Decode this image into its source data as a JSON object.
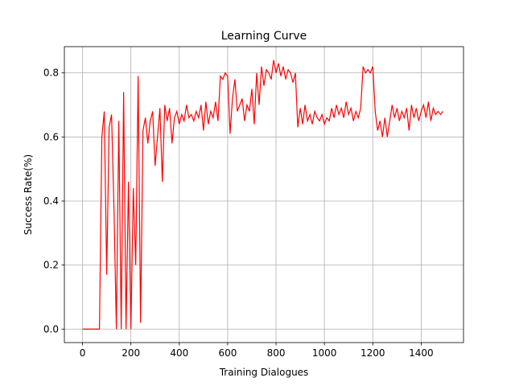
{
  "chart_data": {
    "type": "line",
    "title": "Learning Curve",
    "xlabel": "Training Dialogues",
    "ylabel": "Success Rate(%)",
    "x": [
      0,
      10,
      20,
      30,
      40,
      50,
      60,
      70,
      80,
      90,
      100,
      110,
      120,
      130,
      140,
      150,
      160,
      170,
      180,
      190,
      200,
      210,
      220,
      230,
      240,
      250,
      260,
      270,
      280,
      290,
      300,
      310,
      320,
      330,
      340,
      350,
      360,
      370,
      380,
      390,
      400,
      410,
      420,
      430,
      440,
      450,
      460,
      470,
      480,
      490,
      500,
      510,
      520,
      530,
      540,
      550,
      560,
      570,
      580,
      590,
      600,
      610,
      620,
      630,
      640,
      650,
      660,
      670,
      680,
      690,
      700,
      710,
      720,
      730,
      740,
      750,
      760,
      770,
      780,
      790,
      800,
      810,
      820,
      830,
      840,
      850,
      860,
      870,
      880,
      890,
      900,
      910,
      920,
      930,
      940,
      950,
      960,
      970,
      980,
      990,
      1000,
      1010,
      1020,
      1030,
      1040,
      1050,
      1060,
      1070,
      1080,
      1090,
      1100,
      1110,
      1120,
      1130,
      1140,
      1150,
      1160,
      1170,
      1180,
      1190,
      1200,
      1210,
      1220,
      1230,
      1240,
      1250,
      1260,
      1270,
      1280,
      1290,
      1300,
      1310,
      1320,
      1330,
      1340,
      1350,
      1360,
      1370,
      1380,
      1390,
      1400,
      1410,
      1420,
      1430,
      1440,
      1450,
      1460,
      1470,
      1480,
      1490
    ],
    "series": [
      {
        "name": "Success Rate",
        "color": "#ff0000",
        "values": [
          0,
          0,
          0,
          0,
          0,
          0,
          0,
          0,
          0.6,
          0.68,
          0.17,
          0.63,
          0.67,
          0.38,
          0,
          0.65,
          0,
          0.74,
          0,
          0.46,
          0,
          0.44,
          0.2,
          0.79,
          0.02,
          0.62,
          0.66,
          0.58,
          0.65,
          0.68,
          0.51,
          0.6,
          0.69,
          0.46,
          0.7,
          0.65,
          0.69,
          0.58,
          0.66,
          0.68,
          0.64,
          0.67,
          0.65,
          0.7,
          0.66,
          0.67,
          0.65,
          0.68,
          0.66,
          0.7,
          0.62,
          0.71,
          0.64,
          0.68,
          0.66,
          0.71,
          0.65,
          0.79,
          0.78,
          0.8,
          0.79,
          0.61,
          0.72,
          0.78,
          0.68,
          0.7,
          0.72,
          0.65,
          0.7,
          0.68,
          0.75,
          0.64,
          0.8,
          0.7,
          0.82,
          0.76,
          0.81,
          0.8,
          0.78,
          0.84,
          0.8,
          0.83,
          0.79,
          0.82,
          0.78,
          0.81,
          0.8,
          0.77,
          0.8,
          0.63,
          0.69,
          0.64,
          0.7,
          0.65,
          0.67,
          0.64,
          0.68,
          0.66,
          0.65,
          0.67,
          0.64,
          0.66,
          0.65,
          0.69,
          0.66,
          0.7,
          0.67,
          0.69,
          0.66,
          0.71,
          0.67,
          0.69,
          0.65,
          0.68,
          0.66,
          0.69,
          0.82,
          0.8,
          0.81,
          0.8,
          0.82,
          0.68,
          0.62,
          0.65,
          0.6,
          0.66,
          0.6,
          0.65,
          0.7,
          0.66,
          0.69,
          0.65,
          0.68,
          0.66,
          0.69,
          0.62,
          0.7,
          0.66,
          0.69,
          0.65,
          0.68,
          0.7,
          0.66,
          0.71,
          0.65,
          0.69,
          0.67,
          0.68,
          0.67,
          0.68
        ]
      }
    ],
    "xlim": [
      -75,
      1575
    ],
    "ylim": [
      -0.042,
      0.882
    ],
    "xticks": [
      0,
      200,
      400,
      600,
      800,
      1000,
      1200,
      1400
    ],
    "yticks": [
      {
        "value": 0,
        "label": "0.0"
      },
      0.2,
      0.4,
      0.6,
      0.8
    ],
    "grid": true
  }
}
